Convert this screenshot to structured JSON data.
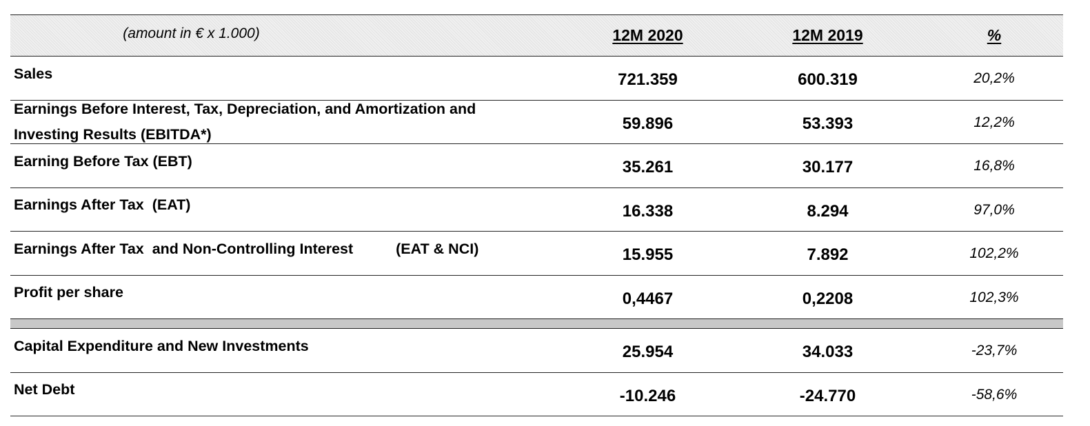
{
  "table": {
    "header": {
      "label": "(amount in € x 1.000)",
      "col1": "12M 2020",
      "col2": "12M 2019",
      "col3": "%"
    },
    "rows": [
      {
        "label": "Sales",
        "v2020": "721.359",
        "v2019": "600.319",
        "pct": "20,2%"
      },
      {
        "label_line1": "Earnings Before Interest, Tax, Depreciation, and Amortization and",
        "label_line2": "Investing Results (EBITDA*)",
        "v2020": "59.896",
        "v2019": "53.393",
        "pct": "12,2%"
      },
      {
        "label": "Earning Before Tax (EBT)",
        "v2020": "35.261",
        "v2019": "30.177",
        "pct": "16,8%"
      },
      {
        "label": "Earnings After Tax  (EAT)",
        "v2020": "16.338",
        "v2019": "8.294",
        "pct": "97,0%"
      },
      {
        "label": "Earnings After Tax  and Non-Controlling Interest",
        "label_suffix": "(EAT & NCI)",
        "v2020": "15.955",
        "v2019": "7.892",
        "pct": "102,2%"
      },
      {
        "label": "Profit per share",
        "v2020": "0,4467",
        "v2019": "0,2208",
        "pct": "102,3%"
      }
    ],
    "rows_after_separator": [
      {
        "label": "Capital Expenditure and New Investments",
        "v2020": "25.954",
        "v2019": "34.033",
        "pct": "-23,7%"
      },
      {
        "label": "Net Debt",
        "v2020": "-10.246",
        "v2019": "-24.770",
        "pct": "-58,6%"
      }
    ]
  }
}
